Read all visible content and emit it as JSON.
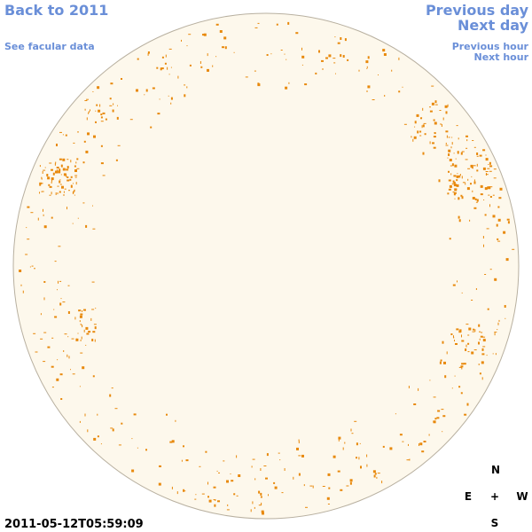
{
  "nav": {
    "back": "Back to 2011",
    "facular": "See facular data",
    "previous_day": "Previous day",
    "next_day": "Next day",
    "previous_hour": "Previous hour",
    "next_hour": "Next hour"
  },
  "timestamp": "2011-05-12T05:59:09",
  "compass": {
    "north": "N",
    "east": "E",
    "center": "+",
    "west": "W",
    "south": "S"
  }
}
